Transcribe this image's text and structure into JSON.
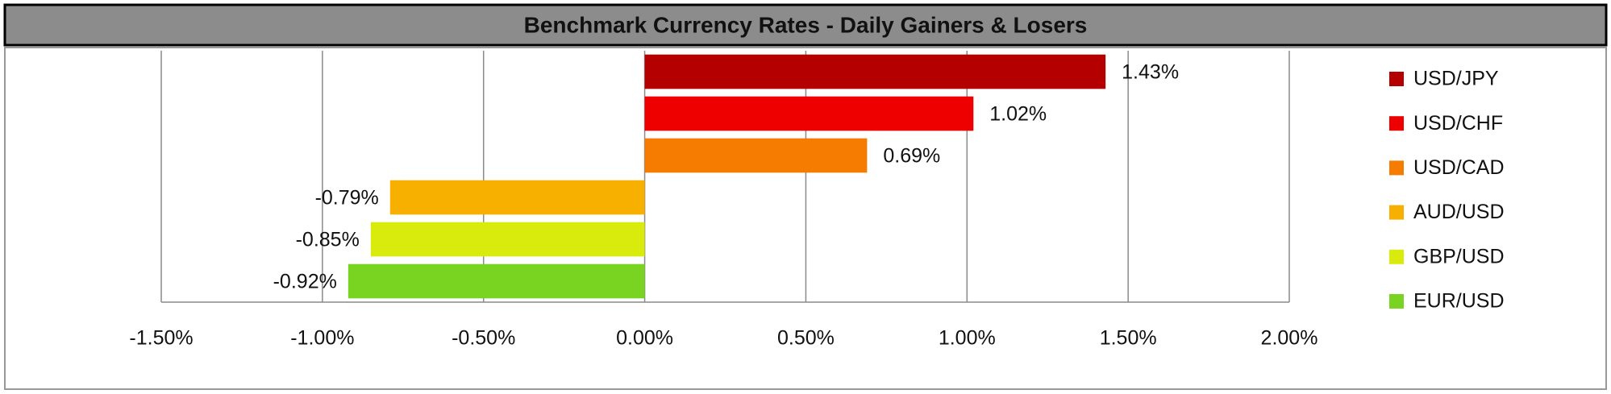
{
  "chart_data": {
    "type": "bar",
    "orientation": "horizontal",
    "title": "Benchmark Currency Rates - Daily Gainers & Losers",
    "categories": [
      "USD/JPY",
      "USD/CHF",
      "USD/CAD",
      "AUD/USD",
      "GBP/USD",
      "EUR/USD"
    ],
    "values": [
      1.43,
      1.02,
      0.69,
      -0.79,
      -0.85,
      -0.92
    ],
    "value_labels": [
      "1.43%",
      "1.02%",
      "0.69%",
      "-0.79%",
      "-0.85%",
      "-0.92%"
    ],
    "colors": [
      "#b50000",
      "#ee0000",
      "#f57c00",
      "#f8b000",
      "#d9eb0c",
      "#79d421"
    ],
    "xlim": [
      -1.5,
      2.0
    ],
    "xticks": [
      {
        "value": -1.5,
        "label": "-1.50%"
      },
      {
        "value": -1.0,
        "label": "-1.00%"
      },
      {
        "value": -0.5,
        "label": "-0.50%"
      },
      {
        "value": 0,
        "label": "0.00%"
      },
      {
        "value": 0.5,
        "label": "0.50%"
      },
      {
        "value": 1.0,
        "label": "1.00%"
      },
      {
        "value": 1.5,
        "label": "1.50%"
      },
      {
        "value": 2.0,
        "label": "2.00%"
      }
    ],
    "grid": true,
    "legend": "right"
  }
}
